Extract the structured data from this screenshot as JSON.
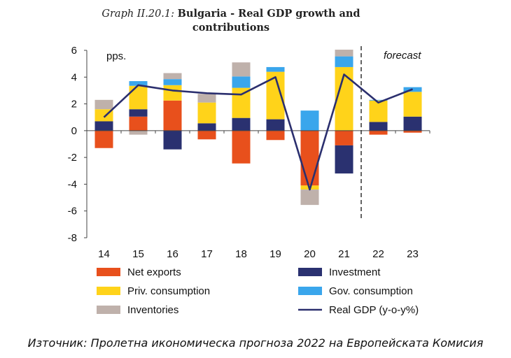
{
  "title": {
    "prefix": "Graph II.20.1:",
    "text": "Bulgaria - Real GDP growth and contributions"
  },
  "source": "Източник: Пролетна икономическа прогноза 2022 на Европейската Комисия",
  "chart_data": {
    "type": "bar",
    "stacked": true,
    "categories": [
      "14",
      "15",
      "16",
      "17",
      "18",
      "19",
      "20",
      "21",
      "22",
      "23"
    ],
    "unit_label": "pps.",
    "annotation": "forecast",
    "ylim": [
      -8,
      6
    ],
    "yticks": [
      -8,
      -6,
      -4,
      -2,
      0,
      2,
      4,
      6
    ],
    "grid": false,
    "legend_position": "bottom",
    "series": [
      {
        "name": "Net exports",
        "type": "bar",
        "color": "#E8501C",
        "values": [
          -1.3,
          1.05,
          2.25,
          -0.65,
          -2.45,
          -0.7,
          -4.1,
          -1.1,
          -0.3,
          -0.15
        ]
      },
      {
        "name": "Investment",
        "type": "bar",
        "color": "#2A3170",
        "values": [
          0.7,
          0.55,
          -1.4,
          0.55,
          0.95,
          0.85,
          0.0,
          -2.1,
          0.65,
          1.05
        ]
      },
      {
        "name": "Priv. consumption",
        "type": "bar",
        "color": "#FFD31A",
        "values": [
          0.9,
          1.75,
          1.15,
          1.55,
          2.25,
          3.55,
          -0.3,
          4.75,
          1.6,
          1.85
        ]
      },
      {
        "name": "Gov. consumption",
        "type": "bar",
        "color": "#3AA6EC",
        "values": [
          0.0,
          0.35,
          0.45,
          0.0,
          0.85,
          0.35,
          1.5,
          0.8,
          0.05,
          0.35
        ]
      },
      {
        "name": "Inventories",
        "type": "bar",
        "color": "#BFB1AB",
        "values": [
          0.7,
          -0.3,
          0.45,
          0.65,
          1.05,
          0.0,
          -1.15,
          0.5,
          0.0,
          0.0
        ]
      },
      {
        "name": "Real GDP (y-o-y%)",
        "type": "line",
        "color": "#2B2F6E",
        "values": [
          1.0,
          3.4,
          3.0,
          2.8,
          2.7,
          4.0,
          -4.4,
          4.2,
          2.1,
          3.1
        ]
      }
    ]
  }
}
